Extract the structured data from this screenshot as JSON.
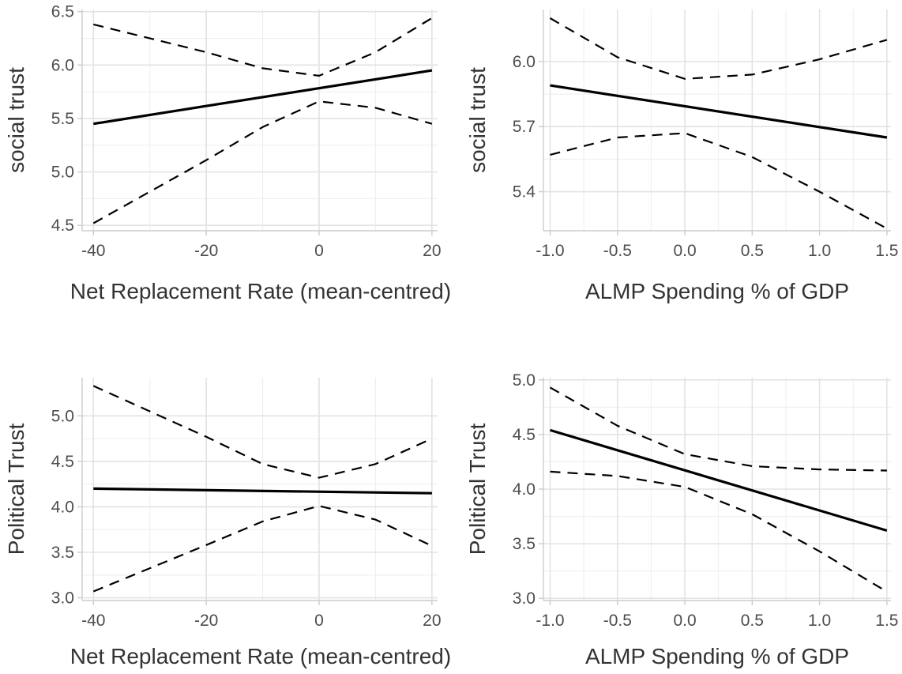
{
  "chart_data": [
    {
      "type": "line",
      "xlabel": "Net Replacement Rate (mean-centred)",
      "ylabel": "social trust",
      "xlim": [
        -42,
        21
      ],
      "ylim": [
        4.45,
        6.52
      ],
      "xticks": [
        -40,
        -20,
        0,
        20
      ],
      "xtick_labels": [
        "-40",
        "-20",
        "0",
        "20"
      ],
      "yticks": [
        4.5,
        5.0,
        5.5,
        6.0,
        6.5
      ],
      "ytick_labels": [
        "4.5",
        "5.0",
        "5.5",
        "6.0",
        "6.5"
      ],
      "grid": true,
      "series": [
        {
          "role": "estimate",
          "style": "solid",
          "x": [
            -40,
            20
          ],
          "y": [
            5.45,
            5.95
          ]
        },
        {
          "role": "upper",
          "style": "dashed",
          "x": [
            -40,
            -20,
            -10,
            0,
            10,
            20
          ],
          "y": [
            6.38,
            6.12,
            5.97,
            5.9,
            6.12,
            6.44
          ]
        },
        {
          "role": "lower",
          "style": "dashed",
          "x": [
            -40,
            -20,
            -10,
            0,
            10,
            20
          ],
          "y": [
            4.52,
            5.11,
            5.42,
            5.66,
            5.6,
            5.45
          ]
        }
      ]
    },
    {
      "type": "line",
      "xlabel": "ALMP Spending % of GDP",
      "ylabel": "social trust",
      "xlim": [
        -1.05,
        1.53
      ],
      "ylim": [
        5.22,
        6.24
      ],
      "xticks": [
        -1.0,
        -0.5,
        0.0,
        0.5,
        1.0,
        1.5
      ],
      "xtick_labels": [
        "-1.0",
        "-0.5",
        "0.0",
        "0.5",
        "1.0",
        "1.5"
      ],
      "yticks": [
        5.4,
        5.7,
        6.0
      ],
      "ytick_labels": [
        "5.4",
        "5.7",
        "6.0"
      ],
      "grid": true,
      "series": [
        {
          "role": "estimate",
          "style": "solid",
          "x": [
            -1.0,
            1.5
          ],
          "y": [
            5.89,
            5.65
          ]
        },
        {
          "role": "upper",
          "style": "dashed",
          "x": [
            -1.0,
            -0.5,
            0.0,
            0.5,
            1.0,
            1.5
          ],
          "y": [
            6.2,
            6.02,
            5.92,
            5.94,
            6.01,
            6.1
          ]
        },
        {
          "role": "lower",
          "style": "dashed",
          "x": [
            -1.0,
            -0.5,
            0.0,
            0.5,
            1.0,
            1.5
          ],
          "y": [
            5.57,
            5.65,
            5.67,
            5.56,
            5.4,
            5.23
          ]
        }
      ]
    },
    {
      "type": "line",
      "xlabel": "Net Replacement Rate (mean-centred)",
      "ylabel": "Political Trust",
      "xlim": [
        -42,
        21
      ],
      "ylim": [
        2.97,
        5.42
      ],
      "xticks": [
        -40,
        -20,
        0,
        20
      ],
      "xtick_labels": [
        "-40",
        "-20",
        "0",
        "20"
      ],
      "yticks": [
        3.0,
        3.5,
        4.0,
        4.5,
        5.0
      ],
      "ytick_labels": [
        "3.0",
        "3.5",
        "4.0",
        "4.5",
        "5.0"
      ],
      "grid": true,
      "series": [
        {
          "role": "estimate",
          "style": "solid",
          "x": [
            -40,
            20
          ],
          "y": [
            4.2,
            4.15
          ]
        },
        {
          "role": "upper",
          "style": "dashed",
          "x": [
            -40,
            -20,
            -10,
            0,
            10,
            20
          ],
          "y": [
            5.33,
            4.77,
            4.47,
            4.32,
            4.47,
            4.75
          ]
        },
        {
          "role": "lower",
          "style": "dashed",
          "x": [
            -40,
            -20,
            -10,
            0,
            10,
            20
          ],
          "y": [
            3.07,
            3.58,
            3.84,
            4.01,
            3.86,
            3.57
          ]
        }
      ]
    },
    {
      "type": "line",
      "xlabel": "ALMP Spending % of GDP",
      "ylabel": "Political Trust",
      "xlim": [
        -1.05,
        1.53
      ],
      "ylim": [
        2.98,
        5.02
      ],
      "xticks": [
        -1.0,
        -0.5,
        0.0,
        0.5,
        1.0,
        1.5
      ],
      "xtick_labels": [
        "-1.0",
        "-0.5",
        "0.0",
        "0.5",
        "1.0",
        "1.5"
      ],
      "yticks": [
        3.0,
        3.5,
        4.0,
        4.5,
        5.0
      ],
      "ytick_labels": [
        "3.0",
        "3.5",
        "4.0",
        "4.5",
        "5.0"
      ],
      "grid": true,
      "series": [
        {
          "role": "estimate",
          "style": "solid",
          "x": [
            -1.0,
            1.5
          ],
          "y": [
            4.54,
            3.62
          ]
        },
        {
          "role": "upper",
          "style": "dashed",
          "x": [
            -1.0,
            -0.5,
            0.0,
            0.5,
            1.0,
            1.5
          ],
          "y": [
            4.93,
            4.58,
            4.32,
            4.21,
            4.18,
            4.17
          ]
        },
        {
          "role": "lower",
          "style": "dashed",
          "x": [
            -1.0,
            -0.5,
            0.0,
            0.5,
            1.0,
            1.5
          ],
          "y": [
            4.16,
            4.12,
            4.02,
            3.77,
            3.43,
            3.06
          ]
        }
      ]
    }
  ]
}
